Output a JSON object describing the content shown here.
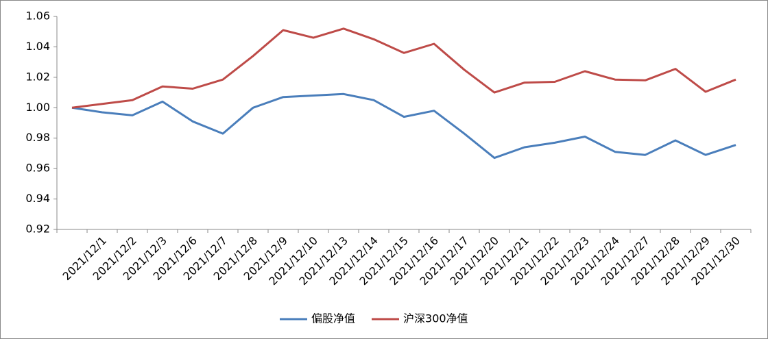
{
  "chart_data": {
    "type": "line",
    "categories": [
      null,
      "2021/12/1",
      "2021/12/2",
      "2021/12/3",
      "2021/12/6",
      "2021/12/7",
      "2021/12/8",
      "2021/12/9",
      "2021/12/10",
      "2021/12/13",
      "2021/12/14",
      "2021/12/15",
      "2021/12/16",
      "2021/12/17",
      "2021/12/20",
      "2021/12/21",
      "2021/12/22",
      "2021/12/23",
      "2021/12/24",
      "2021/12/27",
      "2021/12/28",
      "2021/12/29",
      "2021/12/30"
    ],
    "series": [
      {
        "name": "偏股净值",
        "color": "#4a7ebb",
        "values": [
          1.0,
          0.997,
          0.995,
          1.004,
          0.991,
          0.983,
          1.0,
          1.007,
          1.008,
          1.009,
          1.005,
          0.994,
          0.998,
          0.983,
          0.967,
          0.974,
          0.977,
          0.981,
          0.971,
          0.969,
          0.9785,
          0.969,
          0.9755
        ]
      },
      {
        "name": "沪深300净值",
        "color": "#be4b48",
        "values": [
          1.0,
          1.0025,
          1.005,
          1.014,
          1.0125,
          1.0185,
          1.034,
          1.051,
          1.046,
          1.052,
          1.045,
          1.036,
          1.042,
          1.025,
          1.01,
          1.0165,
          1.017,
          1.024,
          1.0185,
          1.018,
          1.0255,
          1.0105,
          1.0185
        ]
      }
    ],
    "ylim": [
      0.92,
      1.06
    ],
    "yticks": [
      0.92,
      0.94,
      0.96,
      0.98,
      {
        "value": 1.0,
        "label": "1.00"
      },
      1.02,
      1.04,
      1.06
    ],
    "legend": "bottom"
  }
}
